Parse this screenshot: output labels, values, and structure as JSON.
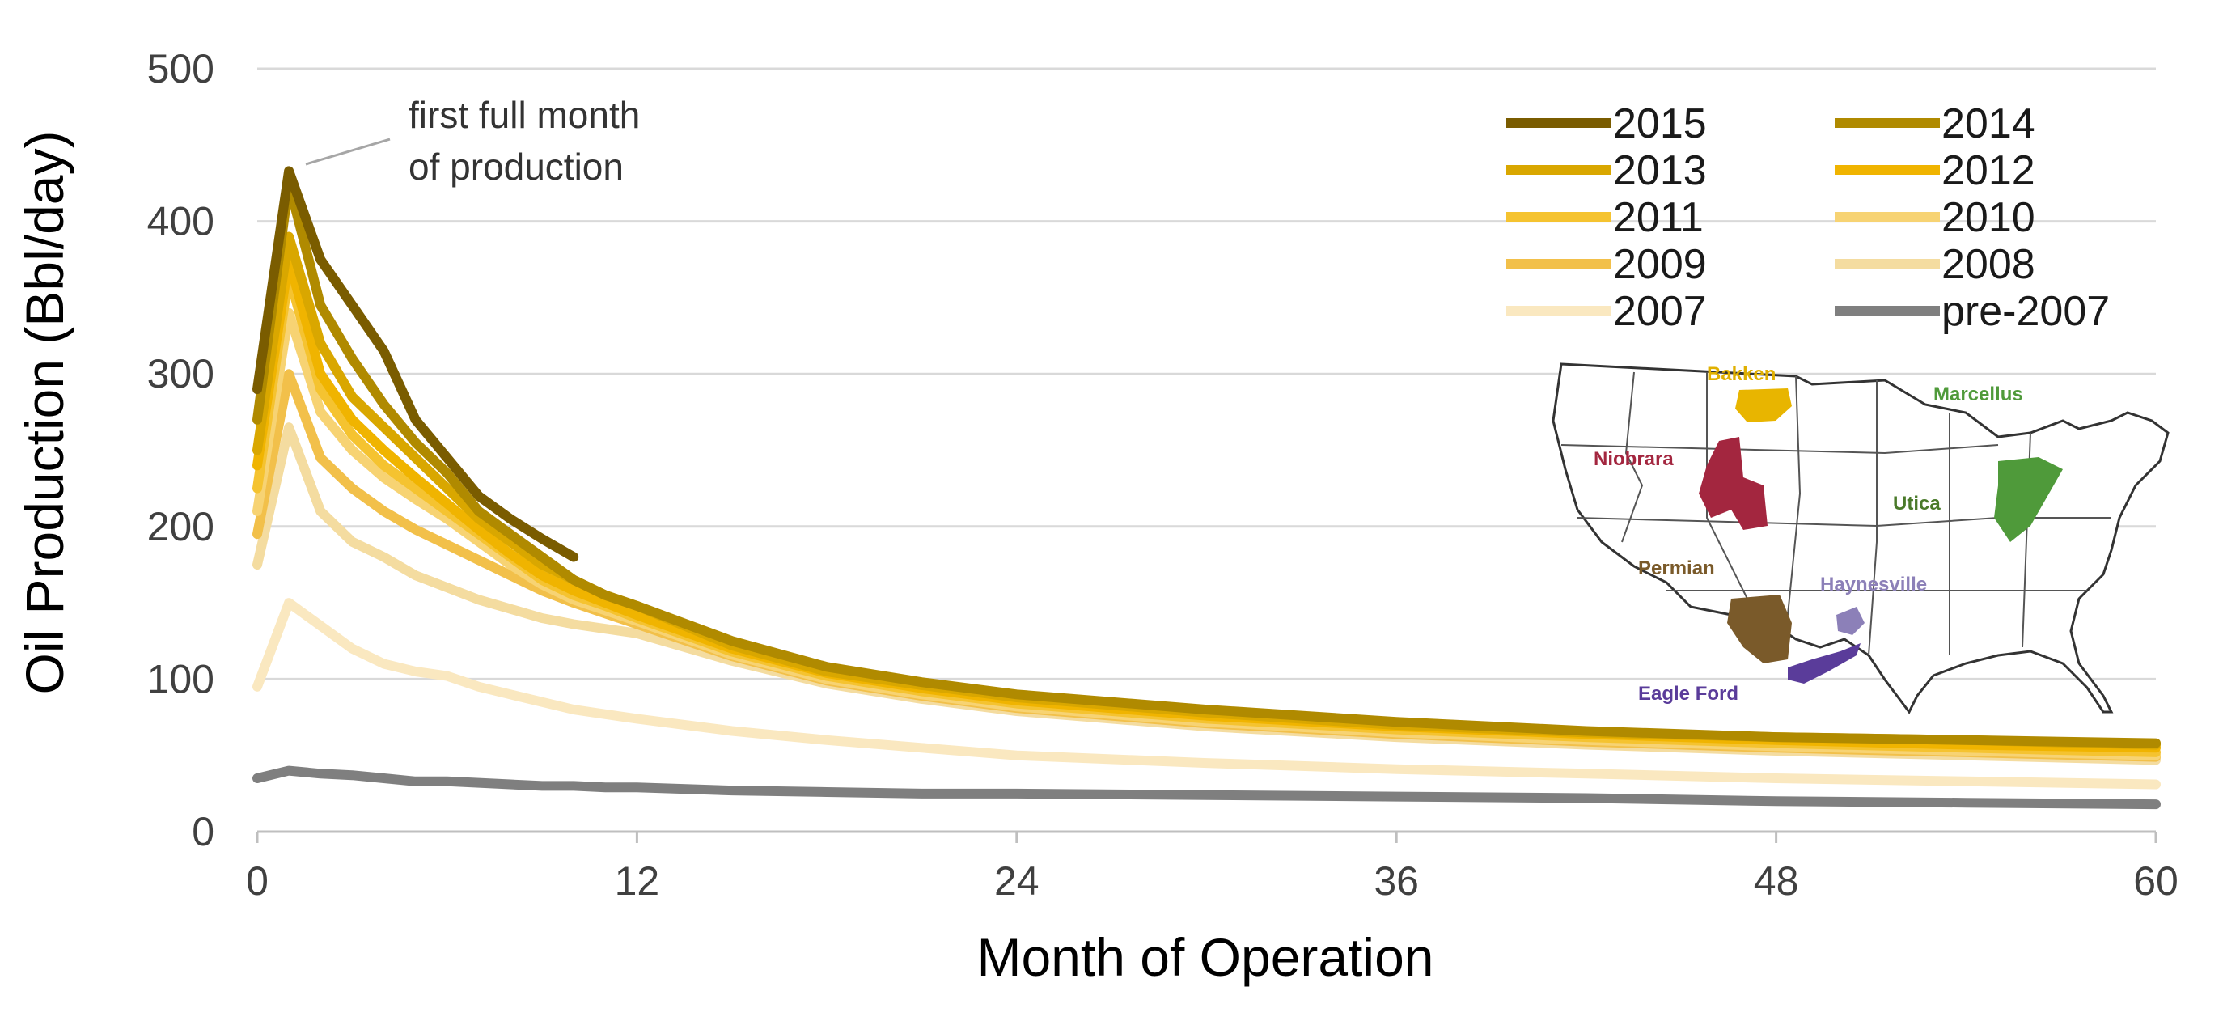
{
  "chart_data": {
    "type": "line",
    "title": "",
    "xlabel": "Month of Operation",
    "ylabel": "Oil Production (Bbl/day)",
    "xlim": [
      0,
      60
    ],
    "ylim": [
      0,
      500
    ],
    "xticks": [
      0,
      12,
      24,
      36,
      48,
      60
    ],
    "yticks": [
      0,
      100,
      200,
      300,
      400,
      500
    ],
    "xtick_labels": [
      "0",
      "12",
      "24",
      "36",
      "48",
      "60"
    ],
    "ytick_labels": [
      "0",
      "100",
      "200",
      "300",
      "400",
      "500"
    ],
    "grid": "horizontal",
    "legend_position": "top-right",
    "annotation": {
      "lines": [
        "first full month",
        "of production"
      ],
      "points_to": {
        "x": 1,
        "y": 433
      }
    },
    "series": [
      {
        "name": "2015",
        "color": "#7a5c00",
        "x": [
          0,
          1,
          2,
          3,
          4,
          5,
          6,
          7,
          8,
          9,
          10
        ],
        "values": [
          290,
          433,
          375,
          345,
          315,
          270,
          245,
          220,
          205,
          192,
          180
        ]
      },
      {
        "name": "2014",
        "color": "#b08a00",
        "x": [
          0,
          1,
          2,
          3,
          4,
          5,
          6,
          7,
          8,
          9,
          10,
          11,
          12,
          15,
          18,
          21,
          24,
          30,
          36,
          42,
          48,
          54,
          60
        ],
        "values": [
          270,
          425,
          345,
          310,
          280,
          255,
          235,
          210,
          195,
          180,
          165,
          155,
          148,
          125,
          108,
          98,
          90,
          80,
          72,
          66,
          62,
          60,
          58
        ]
      },
      {
        "name": "2013",
        "color": "#d9a700",
        "x": [
          0,
          1,
          2,
          3,
          4,
          5,
          6,
          7,
          8,
          9,
          10,
          11,
          12,
          15,
          18,
          21,
          24,
          30,
          36,
          42,
          48,
          54,
          60
        ],
        "values": [
          250,
          390,
          320,
          285,
          265,
          245,
          225,
          205,
          190,
          175,
          165,
          155,
          148,
          122,
          105,
          96,
          88,
          78,
          70,
          65,
          62,
          60,
          57
        ]
      },
      {
        "name": "2012",
        "color": "#f0b400",
        "x": [
          0,
          1,
          2,
          3,
          4,
          5,
          6,
          7,
          8,
          9,
          10,
          11,
          12,
          15,
          18,
          21,
          24,
          30,
          36,
          42,
          48,
          54,
          60
        ],
        "values": [
          240,
          375,
          300,
          270,
          250,
          232,
          215,
          198,
          182,
          168,
          158,
          150,
          142,
          120,
          104,
          94,
          86,
          76,
          69,
          64,
          60,
          57,
          55
        ]
      },
      {
        "name": "2011",
        "color": "#f5c330",
        "x": [
          0,
          1,
          2,
          3,
          4,
          5,
          6,
          7,
          8,
          9,
          10,
          11,
          12,
          15,
          18,
          21,
          24,
          30,
          36,
          42,
          48,
          54,
          60
        ],
        "values": [
          225,
          365,
          290,
          260,
          240,
          225,
          210,
          195,
          180,
          165,
          155,
          148,
          140,
          118,
          102,
          92,
          84,
          74,
          67,
          62,
          58,
          55,
          52
        ]
      },
      {
        "name": "2010",
        "color": "#f7d373",
        "x": [
          0,
          1,
          2,
          3,
          4,
          5,
          6,
          7,
          8,
          9,
          10,
          11,
          12,
          15,
          18,
          21,
          24,
          30,
          36,
          42,
          48,
          54,
          60
        ],
        "values": [
          210,
          340,
          275,
          250,
          232,
          218,
          205,
          190,
          175,
          162,
          152,
          145,
          138,
          116,
          100,
          90,
          82,
          72,
          65,
          60,
          56,
          53,
          50
        ]
      },
      {
        "name": "2009",
        "color": "#f2c04a",
        "x": [
          0,
          1,
          2,
          3,
          4,
          5,
          6,
          7,
          8,
          9,
          10,
          11,
          12,
          15,
          18,
          21,
          24,
          30,
          36,
          42,
          48,
          54,
          60
        ],
        "values": [
          195,
          300,
          245,
          225,
          210,
          198,
          188,
          178,
          168,
          158,
          150,
          143,
          136,
          115,
          99,
          89,
          81,
          71,
          64,
          59,
          55,
          52,
          49
        ]
      },
      {
        "name": "2008",
        "color": "#f4dca0",
        "x": [
          0,
          1,
          2,
          3,
          4,
          5,
          6,
          7,
          8,
          9,
          10,
          11,
          12,
          15,
          18,
          21,
          24,
          30,
          36,
          42,
          48,
          54,
          60
        ],
        "values": [
          175,
          265,
          210,
          190,
          180,
          168,
          160,
          152,
          146,
          140,
          136,
          133,
          130,
          112,
          97,
          87,
          79,
          69,
          62,
          57,
          53,
          50,
          47
        ]
      },
      {
        "name": "2007",
        "color": "#fae8c0",
        "x": [
          0,
          1,
          2,
          3,
          4,
          5,
          6,
          7,
          8,
          9,
          10,
          11,
          12,
          15,
          18,
          21,
          24,
          30,
          36,
          42,
          48,
          54,
          60
        ],
        "values": [
          95,
          150,
          135,
          120,
          110,
          105,
          102,
          95,
          90,
          85,
          80,
          77,
          74,
          66,
          60,
          55,
          50,
          45,
          41,
          38,
          35,
          33,
          31
        ]
      },
      {
        "name": "pre-2007",
        "color": "#7f7f7f",
        "x": [
          0,
          1,
          2,
          3,
          4,
          5,
          6,
          7,
          8,
          9,
          10,
          11,
          12,
          15,
          18,
          21,
          24,
          30,
          36,
          42,
          48,
          54,
          60
        ],
        "values": [
          35,
          40,
          38,
          37,
          35,
          33,
          33,
          32,
          31,
          30,
          30,
          29,
          29,
          27,
          26,
          25,
          25,
          24,
          23,
          22,
          20,
          19,
          18
        ]
      }
    ]
  },
  "inset_map": {
    "description_labels": [
      {
        "name": "Bakken",
        "color": "#e0b000"
      },
      {
        "name": "Marcellus",
        "color": "#4f9a3a"
      },
      {
        "name": "Niobrara",
        "color": "#a3263f"
      },
      {
        "name": "Utica",
        "color": "#4a7a2a"
      },
      {
        "name": "Permian",
        "color": "#7a5a2a"
      },
      {
        "name": "Haynesville",
        "color": "#8c80b8"
      },
      {
        "name": "Eagle Ford",
        "color": "#5a3c9a"
      }
    ]
  }
}
